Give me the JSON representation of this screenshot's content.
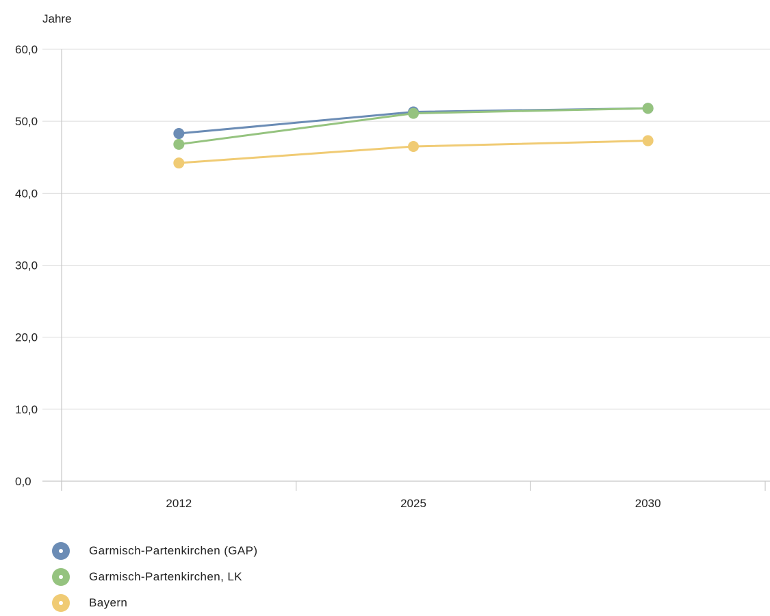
{
  "chart_data": {
    "type": "line",
    "title": "",
    "xlabel": "",
    "ylabel": "Jahre",
    "categories": [
      "2012",
      "2025",
      "2030"
    ],
    "ylim": [
      0,
      60
    ],
    "yticks": [
      "0,0",
      "10,0",
      "20,0",
      "30,0",
      "40,0",
      "50,0",
      "60,0"
    ],
    "grid": true,
    "legend_position": "bottom-left",
    "series": [
      {
        "name": "Garmisch-Partenkirchen (GAP)",
        "color": "#6b8cb5",
        "values": [
          48.3,
          51.3,
          51.8
        ]
      },
      {
        "name": "Garmisch-Partenkirchen, LK",
        "color": "#95c37f",
        "values": [
          46.8,
          51.1,
          51.8
        ]
      },
      {
        "name": "Bayern",
        "color": "#f0cb74",
        "values": [
          44.2,
          46.5,
          47.3
        ]
      }
    ]
  }
}
